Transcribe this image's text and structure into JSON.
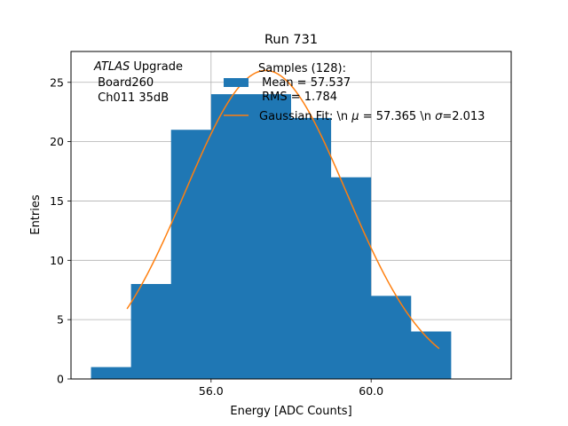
{
  "chart_data": {
    "type": "bar",
    "title": "Run 731",
    "xlabel": "Energy [ADC Counts]",
    "ylabel": "Entries",
    "xlim": [
      52.5,
      63.5
    ],
    "ylim": [
      0,
      27.6
    ],
    "grid": true,
    "x_ticks": [
      {
        "value": 56.0,
        "label": "56.0"
      },
      {
        "value": 60.0,
        "label": "60.0"
      }
    ],
    "y_ticks": [
      {
        "value": 0,
        "label": "0"
      },
      {
        "value": 5,
        "label": "5"
      },
      {
        "value": 10,
        "label": "10"
      },
      {
        "value": 15,
        "label": "15"
      },
      {
        "value": 20,
        "label": "20"
      },
      {
        "value": 25,
        "label": "25"
      }
    ],
    "histogram": {
      "color": "#1f77b4",
      "bins": [
        {
          "x0": 53.0,
          "x1": 54.0,
          "count": 1
        },
        {
          "x0": 54.0,
          "x1": 55.0,
          "count": 8
        },
        {
          "x0": 55.0,
          "x1": 56.0,
          "count": 21
        },
        {
          "x0": 56.0,
          "x1": 57.0,
          "count": 24
        },
        {
          "x0": 57.0,
          "x1": 58.0,
          "count": 24
        },
        {
          "x0": 58.0,
          "x1": 59.0,
          "count": 22
        },
        {
          "x0": 59.0,
          "x1": 60.0,
          "count": 17
        },
        {
          "x0": 60.0,
          "x1": 61.0,
          "count": 7
        },
        {
          "x0": 61.0,
          "x1": 62.0,
          "count": 4
        }
      ]
    },
    "fit": {
      "color": "#ff7f0e",
      "mu": 57.365,
      "sigma": 2.013,
      "amplitude": 26.0,
      "x_range": [
        53.9,
        61.7
      ]
    },
    "annotation": {
      "atlas": "ATLAS",
      "upgrade": " Upgrade",
      "line2": " Board260",
      "line3": " Ch011 35dB"
    },
    "legend": {
      "placement": "top-right",
      "samples_title": "Samples (128):",
      "samples_mean": " Mean = 57.537",
      "samples_rms": " RMS = 1.784",
      "fit_label_prefix": "Gaussian Fit: \\n ",
      "mu_symbol": "μ",
      "fit_mu_value": " = 57.365 \\n ",
      "sigma_symbol": "σ",
      "fit_sigma_value": "=2.013"
    }
  }
}
